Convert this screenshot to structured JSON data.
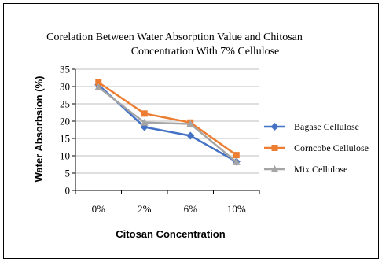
{
  "chart_data": {
    "type": "line",
    "title_line1": "Corelation Between Water Absorption Value and Chitosan",
    "title_line2": "Concentration With 7% Cellulose",
    "xlabel": "Citosan Concentration",
    "ylabel": "Water Absorbsion (%)",
    "categories": [
      "0%",
      "2%",
      "6%",
      "10%"
    ],
    "ylim": [
      0,
      35
    ],
    "yticks": [
      0,
      5,
      10,
      15,
      20,
      25,
      30,
      35
    ],
    "grid": true,
    "legend_position": "right",
    "series": [
      {
        "name": "Bagase Cellulose",
        "values": [
          30.5,
          18.3,
          15.8,
          8.3
        ],
        "color": "#4472C4",
        "marker": "diamond"
      },
      {
        "name": "Corncobe Cellulose",
        "values": [
          31.2,
          22.2,
          19.6,
          10.2
        ],
        "color": "#ED7D31",
        "marker": "square"
      },
      {
        "name": "Mix Cellulose",
        "values": [
          29.8,
          19.6,
          19.2,
          8.2
        ],
        "color": "#A5A5A5",
        "marker": "triangle"
      }
    ]
  }
}
